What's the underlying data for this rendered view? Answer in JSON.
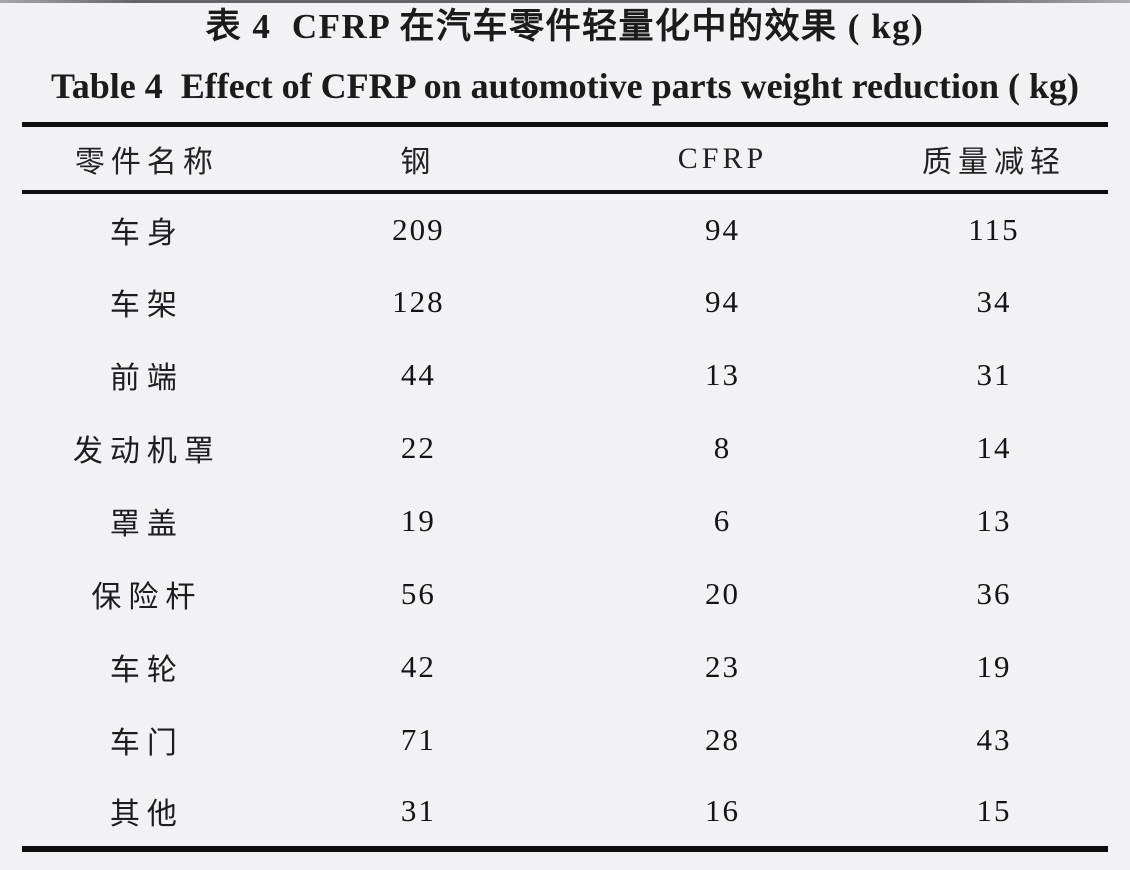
{
  "page": {
    "background": "#f2f2f4",
    "text_color": "#1b1b1c",
    "rule_color": "#0e0e0e"
  },
  "caption": {
    "zh": "表 4  CFRP 在汽车零件轻量化中的效果 ( kg)",
    "en": "Table 4  Effect of CFRP on automotive parts weight reduction ( kg)"
  },
  "chart_data": {
    "type": "table",
    "title_zh": "表 4  CFRP 在汽车零件轻量化中的效果 (kg)",
    "title_en": "Table 4  Effect of CFRP on automotive parts weight reduction (kg)",
    "unit": "kg",
    "columns": [
      "零件名称",
      "钢",
      "CFRP",
      "质量减轻"
    ],
    "rows": [
      {
        "part": "车身",
        "steel": "209",
        "cfrp": "94",
        "reduction": "115"
      },
      {
        "part": "车架",
        "steel": "128",
        "cfrp": "94",
        "reduction": "34"
      },
      {
        "part": "前端",
        "steel": "44",
        "cfrp": "13",
        "reduction": "31"
      },
      {
        "part": "发动机罩",
        "steel": "22",
        "cfrp": "8",
        "reduction": "14"
      },
      {
        "part": "罩盖",
        "steel": "19",
        "cfrp": "6",
        "reduction": "13"
      },
      {
        "part": "保险杆",
        "steel": "56",
        "cfrp": "20",
        "reduction": "36"
      },
      {
        "part": "车轮",
        "steel": "42",
        "cfrp": "23",
        "reduction": "19"
      },
      {
        "part": "车门",
        "steel": "71",
        "cfrp": "28",
        "reduction": "43"
      },
      {
        "part": "其他",
        "steel": "31",
        "cfrp": "16",
        "reduction": "15"
      }
    ]
  }
}
